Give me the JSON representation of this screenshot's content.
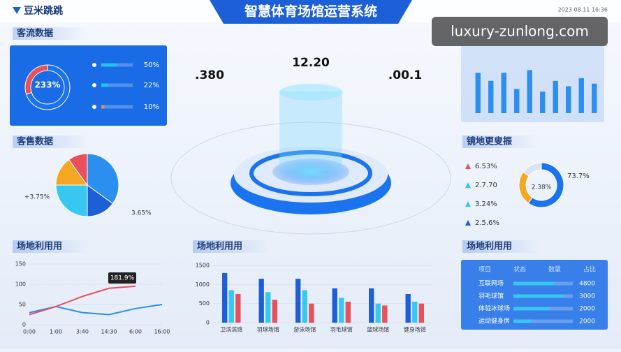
{
  "header": {
    "logo": "豆米跳跳",
    "title": "智慧体育场馆运营系统",
    "time": "2023.08.11 16:36",
    "watermark": "luxury-zunlong.com"
  },
  "stats": [
    ".380",
    "12.20",
    ".00.1"
  ],
  "table": {
    "title": "场地利用用",
    "columns": [
      "项目",
      "状态",
      "数量",
      "占比"
    ],
    "rows": [
      [
        "互联网场",
        "4800"
      ],
      [
        "羽毛球馆",
        "3000"
      ],
      [
        "体验冰球场",
        "2000"
      ],
      [
        "运动健身房",
        "2000"
      ]
    ]
  },
  "chart_data": [
    {
      "type": "donut",
      "title": "客流数据",
      "center_label": "233%",
      "values": [
        70,
        30
      ],
      "colors": [
        "#1a74f0",
        "#e8505b"
      ]
    },
    {
      "type": "hbar",
      "values": [
        50,
        22,
        10
      ],
      "value_labels": [
        "50%",
        "22%",
        "10%"
      ],
      "xlim": [
        0,
        100
      ],
      "colors": [
        "#27c2f0",
        "#27c2f0",
        "#f08a4b"
      ]
    },
    {
      "type": "pie",
      "title": "客售数据",
      "values": [
        35,
        15,
        25,
        15,
        10
      ],
      "colors": [
        "#2b8ff0",
        "#1d5fd6",
        "#36c8f0",
        "#f5a623",
        "#e8505b"
      ],
      "annotations": [
        "+3.75%",
        "3.65%"
      ]
    },
    {
      "type": "bar",
      "categories": [
        null,
        null,
        null,
        null,
        null,
        null,
        null,
        null,
        null,
        null
      ],
      "values": [
        75,
        60,
        75,
        45,
        80,
        40,
        60,
        50,
        65,
        55
      ],
      "ylim": [
        0,
        100
      ],
      "color": "#2b8ff0"
    },
    {
      "type": "donut",
      "title": "镜地更叟振",
      "center_label": "2.38%",
      "values": [
        60,
        25,
        15
      ],
      "colors": [
        "#1a74f0",
        "#f5a623",
        "#d6e4f5"
      ],
      "annotations": [
        "73.7%"
      ],
      "list": [
        "6.53%",
        "2.7.70",
        "3.24%",
        "2.5.6%"
      ],
      "list_colors": [
        "#e8505b",
        "#36c8f0",
        "#36c8f0",
        "#1d5fd6"
      ]
    },
    {
      "type": "line",
      "title": "场地利用用",
      "categories": [
        "0:00",
        "1:00",
        "3:40",
        "14:30",
        "6:00",
        "16:00"
      ],
      "series": [
        {
          "color": "#2b8ff0",
          "values": [
            30,
            45,
            30,
            25,
            40,
            50
          ]
        },
        {
          "color": "#e8505b",
          "values": [
            25,
            45,
            70,
            90,
            95,
            null
          ]
        }
      ],
      "ylim": [
        0,
        150
      ],
      "yticks": [
        0,
        50,
        100,
        150
      ],
      "annotations": [
        "181.9%"
      ]
    },
    {
      "type": "bar",
      "title": "场地利用用",
      "categories": [
        "卫滨滨馆",
        "羽球场馆",
        "游泳场馆",
        "羽毛球馆",
        "篮球场馆",
        "健身场馆"
      ],
      "series": [
        {
          "color": "#1d5fd6",
          "values": [
            1300,
            1150,
            1150,
            900,
            900,
            750
          ]
        },
        {
          "color": "#36c8f0",
          "values": [
            850,
            800,
            850,
            650,
            500,
            550
          ]
        },
        {
          "color": "#e8505b",
          "values": [
            750,
            600,
            500,
            550,
            450,
            500
          ]
        }
      ],
      "ylim": [
        0,
        1500
      ],
      "yticks": [
        0,
        500,
        1000,
        1500
      ]
    },
    {
      "type": "hbar",
      "values": [
        70,
        85,
        60,
        30
      ],
      "xlim": [
        0,
        100
      ],
      "colors": [
        "#36c8f0",
        "#36c8f0",
        "#36c8f0",
        "#36c8f0"
      ]
    }
  ]
}
